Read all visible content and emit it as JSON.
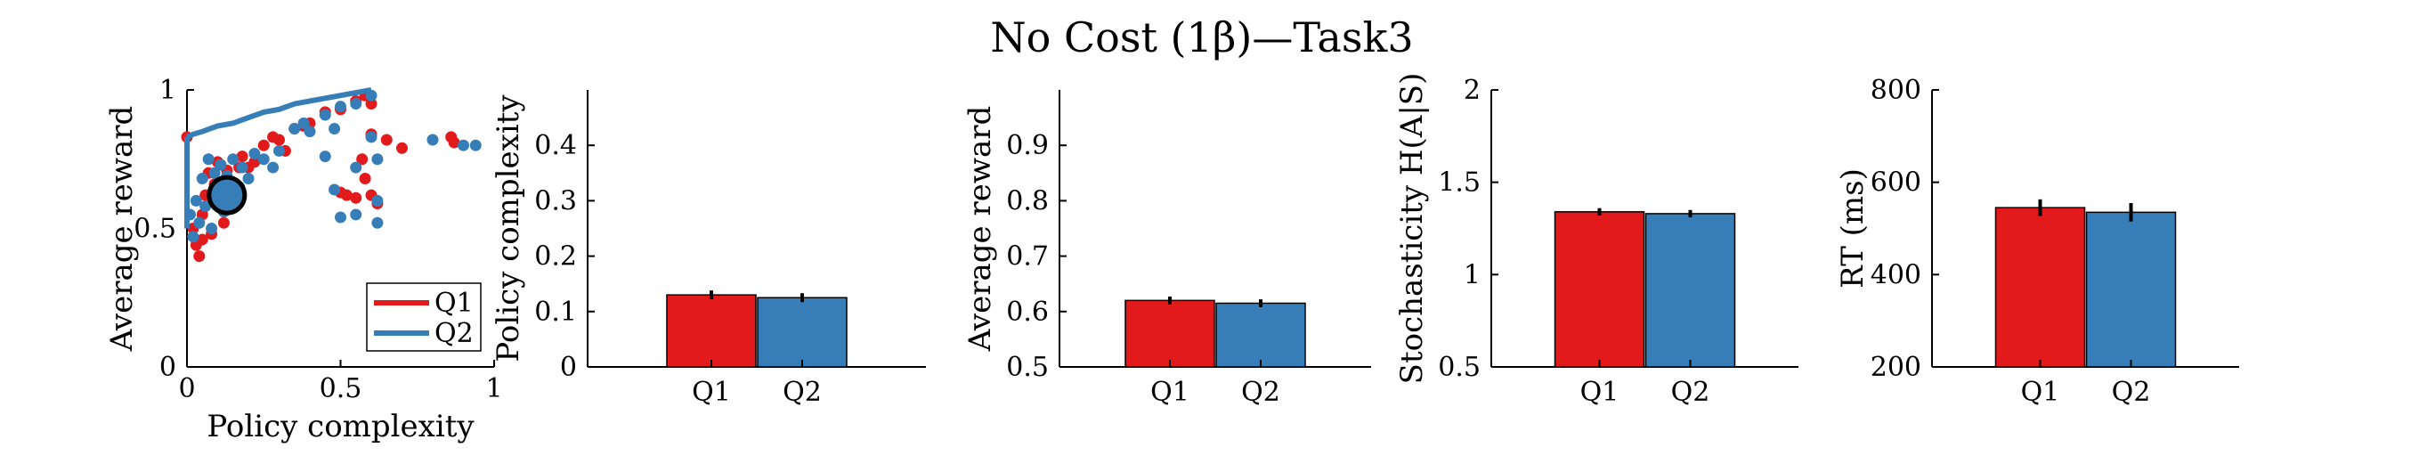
{
  "title": "No Cost (1β)—Task3",
  "colors": {
    "q1": "#e31a1c",
    "q2": "#377eb8"
  },
  "chart_data": [
    {
      "type": "scatter",
      "xlabel": "Policy complexity",
      "ylabel": "Average reward",
      "xlim": [
        0,
        1
      ],
      "ylim": [
        0,
        1
      ],
      "xticks": [
        "0",
        "0.5",
        "1"
      ],
      "yticks": [
        "0",
        "0.5",
        "1"
      ],
      "legend": {
        "placement": "bottom-right",
        "entries": [
          "Q1",
          "Q2"
        ]
      },
      "series": [
        {
          "name": "Q1",
          "color": "#e31a1c",
          "points": [
            [
              0.0,
              0.83
            ],
            [
              0.02,
              0.5
            ],
            [
              0.03,
              0.44
            ],
            [
              0.04,
              0.4
            ],
            [
              0.05,
              0.46
            ],
            [
              0.05,
              0.55
            ],
            [
              0.06,
              0.62
            ],
            [
              0.07,
              0.7
            ],
            [
              0.08,
              0.48
            ],
            [
              0.09,
              0.66
            ],
            [
              0.1,
              0.74
            ],
            [
              0.12,
              0.52
            ],
            [
              0.13,
              0.71
            ],
            [
              0.14,
              0.6
            ],
            [
              0.15,
              0.58
            ],
            [
              0.17,
              0.72
            ],
            [
              0.18,
              0.76
            ],
            [
              0.2,
              0.72
            ],
            [
              0.22,
              0.74
            ],
            [
              0.25,
              0.8
            ],
            [
              0.28,
              0.83
            ],
            [
              0.3,
              0.82
            ],
            [
              0.32,
              0.78
            ],
            [
              0.35,
              0.86
            ],
            [
              0.38,
              0.87
            ],
            [
              0.4,
              0.88
            ],
            [
              0.45,
              0.92
            ],
            [
              0.5,
              0.93
            ],
            [
              0.55,
              0.96
            ],
            [
              0.58,
              0.98
            ],
            [
              0.6,
              0.95
            ],
            [
              0.5,
              0.63
            ],
            [
              0.52,
              0.62
            ],
            [
              0.55,
              0.61
            ],
            [
              0.6,
              0.62
            ],
            [
              0.58,
              0.68
            ],
            [
              0.62,
              0.59
            ],
            [
              0.65,
              0.82
            ],
            [
              0.7,
              0.79
            ],
            [
              0.86,
              0.83
            ],
            [
              0.87,
              0.81
            ],
            [
              0.57,
              0.75
            ],
            [
              0.6,
              0.84
            ]
          ]
        },
        {
          "name": "Q2",
          "color": "#377eb8",
          "points": [
            [
              0.01,
              0.55
            ],
            [
              0.02,
              0.47
            ],
            [
              0.03,
              0.6
            ],
            [
              0.04,
              0.52
            ],
            [
              0.05,
              0.68
            ],
            [
              0.06,
              0.58
            ],
            [
              0.07,
              0.75
            ],
            [
              0.08,
              0.5
            ],
            [
              0.09,
              0.7
            ],
            [
              0.1,
              0.62
            ],
            [
              0.11,
              0.73
            ],
            [
              0.12,
              0.56
            ],
            [
              0.13,
              0.69
            ],
            [
              0.14,
              0.66
            ],
            [
              0.15,
              0.75
            ],
            [
              0.16,
              0.6
            ],
            [
              0.17,
              0.65
            ],
            [
              0.18,
              0.72
            ],
            [
              0.2,
              0.68
            ],
            [
              0.22,
              0.77
            ],
            [
              0.25,
              0.75
            ],
            [
              0.28,
              0.72
            ],
            [
              0.3,
              0.78
            ],
            [
              0.35,
              0.86
            ],
            [
              0.38,
              0.88
            ],
            [
              0.4,
              0.85
            ],
            [
              0.45,
              0.91
            ],
            [
              0.48,
              0.86
            ],
            [
              0.5,
              0.94
            ],
            [
              0.55,
              0.95
            ],
            [
              0.6,
              0.98
            ],
            [
              0.45,
              0.76
            ],
            [
              0.48,
              0.64
            ],
            [
              0.5,
              0.54
            ],
            [
              0.55,
              0.55
            ],
            [
              0.6,
              0.83
            ],
            [
              0.62,
              0.52
            ],
            [
              0.62,
              0.6
            ],
            [
              0.9,
              0.8
            ],
            [
              0.94,
              0.8
            ],
            [
              0.8,
              0.82
            ],
            [
              0.62,
              0.75
            ],
            [
              0.55,
              0.72
            ]
          ]
        }
      ],
      "fit_curve": {
        "color": "#377eb8",
        "points": [
          [
            0.0,
            0.83
          ],
          [
            0.02,
            0.84
          ],
          [
            0.05,
            0.85
          ],
          [
            0.1,
            0.87
          ],
          [
            0.15,
            0.88
          ],
          [
            0.2,
            0.9
          ],
          [
            0.25,
            0.92
          ],
          [
            0.3,
            0.93
          ],
          [
            0.35,
            0.95
          ],
          [
            0.4,
            0.96
          ],
          [
            0.45,
            0.97
          ],
          [
            0.5,
            0.98
          ],
          [
            0.55,
            0.99
          ],
          [
            0.6,
            1.0
          ]
        ]
      },
      "mean_marker": {
        "x": 0.13,
        "y": 0.62
      }
    },
    {
      "type": "bar",
      "ylabel": "Policy complexity",
      "categories": [
        "Q1",
        "Q2"
      ],
      "values": [
        0.13,
        0.125
      ],
      "errors": [
        0.008,
        0.008
      ],
      "ylim": [
        0,
        0.5
      ],
      "yticks": [
        "0",
        "0.1",
        "0.2",
        "0.3",
        "0.4"
      ]
    },
    {
      "type": "bar",
      "ylabel": "Average reward",
      "categories": [
        "Q1",
        "Q2"
      ],
      "values": [
        0.62,
        0.615
      ],
      "errors": [
        0.007,
        0.007
      ],
      "ylim": [
        0.5,
        1.0
      ],
      "yticks": [
        "0.5",
        "0.6",
        "0.7",
        "0.8",
        "0.9"
      ]
    },
    {
      "type": "bar",
      "ylabel": "Stochasticity H(A|S)",
      "categories": [
        "Q1",
        "Q2"
      ],
      "values": [
        1.34,
        1.33
      ],
      "errors": [
        0.02,
        0.02
      ],
      "ylim": [
        0.5,
        2.0
      ],
      "yticks": [
        "0.5",
        "1",
        "1.5",
        "2"
      ]
    },
    {
      "type": "bar",
      "ylabel": "RT (ms)",
      "categories": [
        "Q1",
        "Q2"
      ],
      "values": [
        545,
        535
      ],
      "errors": [
        18,
        20
      ],
      "ylim": [
        200,
        800
      ],
      "yticks": [
        "200",
        "400",
        "600",
        "800"
      ]
    }
  ]
}
